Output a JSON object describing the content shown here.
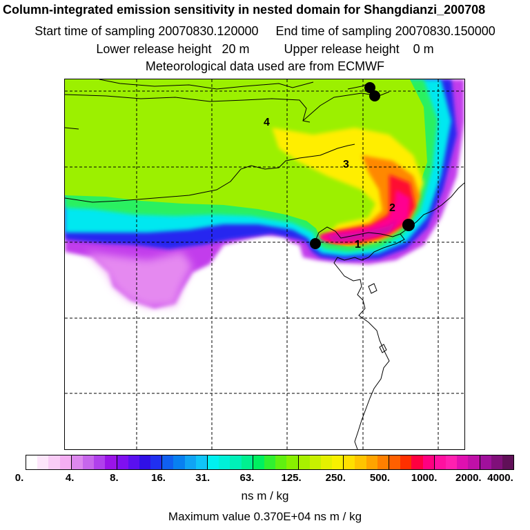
{
  "header": {
    "title": "Column-integrated emission sensitivity in nested domain for Shangdianzi_200708",
    "sampling": "Start time of sampling 20070830.120000     End time of sampling 20070830.150000",
    "release": "Lower release height   20 m          Upper release height    0 m",
    "meteo": "Meteorological data used are from ECMWF"
  },
  "map": {
    "labels": [
      "1",
      "2",
      "3",
      "4"
    ],
    "markers": [
      "station-marker",
      "station-marker",
      "station-marker",
      "station-marker"
    ]
  },
  "colorbar": {
    "colors": [
      "#ffffff",
      "#fde6fb",
      "#f9ccf6",
      "#f4aef2",
      "#dd88ee",
      "#c766ec",
      "#b040ec",
      "#9a14e8",
      "#7f10f0",
      "#5a10f0",
      "#3010e6",
      "#2030f0",
      "#1060f0",
      "#0880f0",
      "#10a4f4",
      "#10c4f8",
      "#00f0f0",
      "#00f0d8",
      "#00f0b8",
      "#00f090",
      "#00f060",
      "#30f030",
      "#60f010",
      "#88f000",
      "#a8f000",
      "#c8f000",
      "#e4f000",
      "#f8f000",
      "#ffe000",
      "#ffc400",
      "#ffa400",
      "#ff8000",
      "#ff6000",
      "#ff3000",
      "#ff0040",
      "#ff0080",
      "#ff10a0",
      "#ff20b0",
      "#e010b0",
      "#c010a8",
      "#a0109c",
      "#80107a",
      "#601058"
    ],
    "tick_labels": [
      "0.",
      "4.",
      "8.",
      "16.",
      "31.",
      "63.",
      "125.",
      "250.",
      "500.",
      "1000.",
      "2000.",
      "4000."
    ],
    "unit": "ns m / kg"
  },
  "footer": {
    "maximum": "Maximum value  0.370E+04 ns m / kg"
  }
}
